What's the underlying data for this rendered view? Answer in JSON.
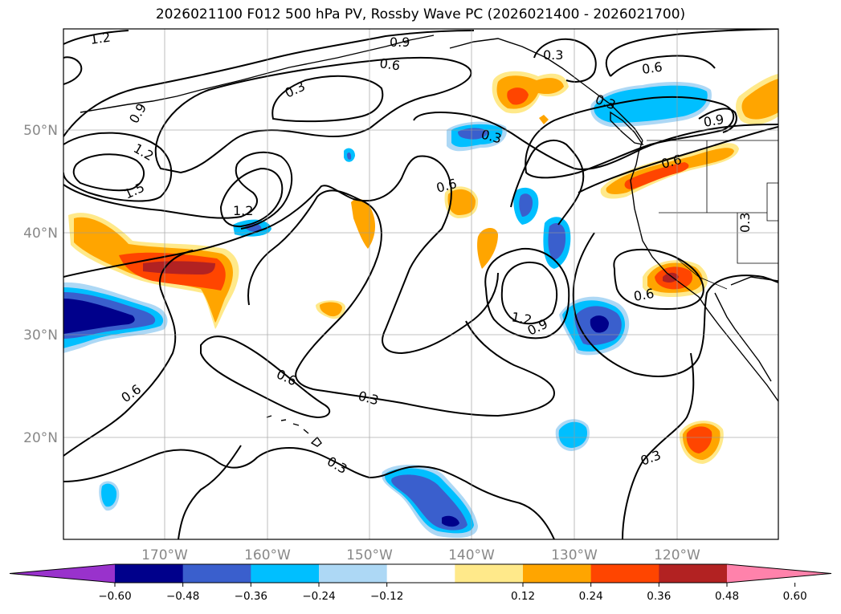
{
  "title": "2026021100 F012 500 hPa PV, Rossby Wave PC (2026021400 - 2026021700)",
  "map": {
    "lon_ticks": [
      "170°W",
      "160°W",
      "150°W",
      "140°W",
      "130°W",
      "120°W"
    ],
    "lat_ticks": [
      "50°N",
      "40°N",
      "30°N",
      "20°N"
    ],
    "gridlines": true
  },
  "contour_labels": [
    "1.2",
    "0.9",
    "0.6",
    "0.3",
    "0.3",
    "0.9",
    "1.2",
    "1.5",
    "1.2",
    "0.6",
    "0.3",
    "0.6",
    "0.3",
    "0.9",
    "0.6",
    "0.3",
    "0.6",
    "1.2",
    "0.9",
    "0.6",
    "0.3",
    "0.6",
    "0.3",
    "0.3",
    "0.3"
  ],
  "colorbar": {
    "tick_labels": [
      "−0.60",
      "−0.48",
      "−0.36",
      "−0.24",
      "−0.12",
      "0.12",
      "0.24",
      "0.36",
      "0.48",
      "0.60"
    ],
    "colors": [
      "#9932cc",
      "#00008b",
      "#3a5fcd",
      "#00bfff",
      "#add8f5",
      "#ffffff",
      "#ffe98a",
      "#ffa500",
      "#ff4500",
      "#b22222",
      "#ff82ab"
    ]
  }
}
